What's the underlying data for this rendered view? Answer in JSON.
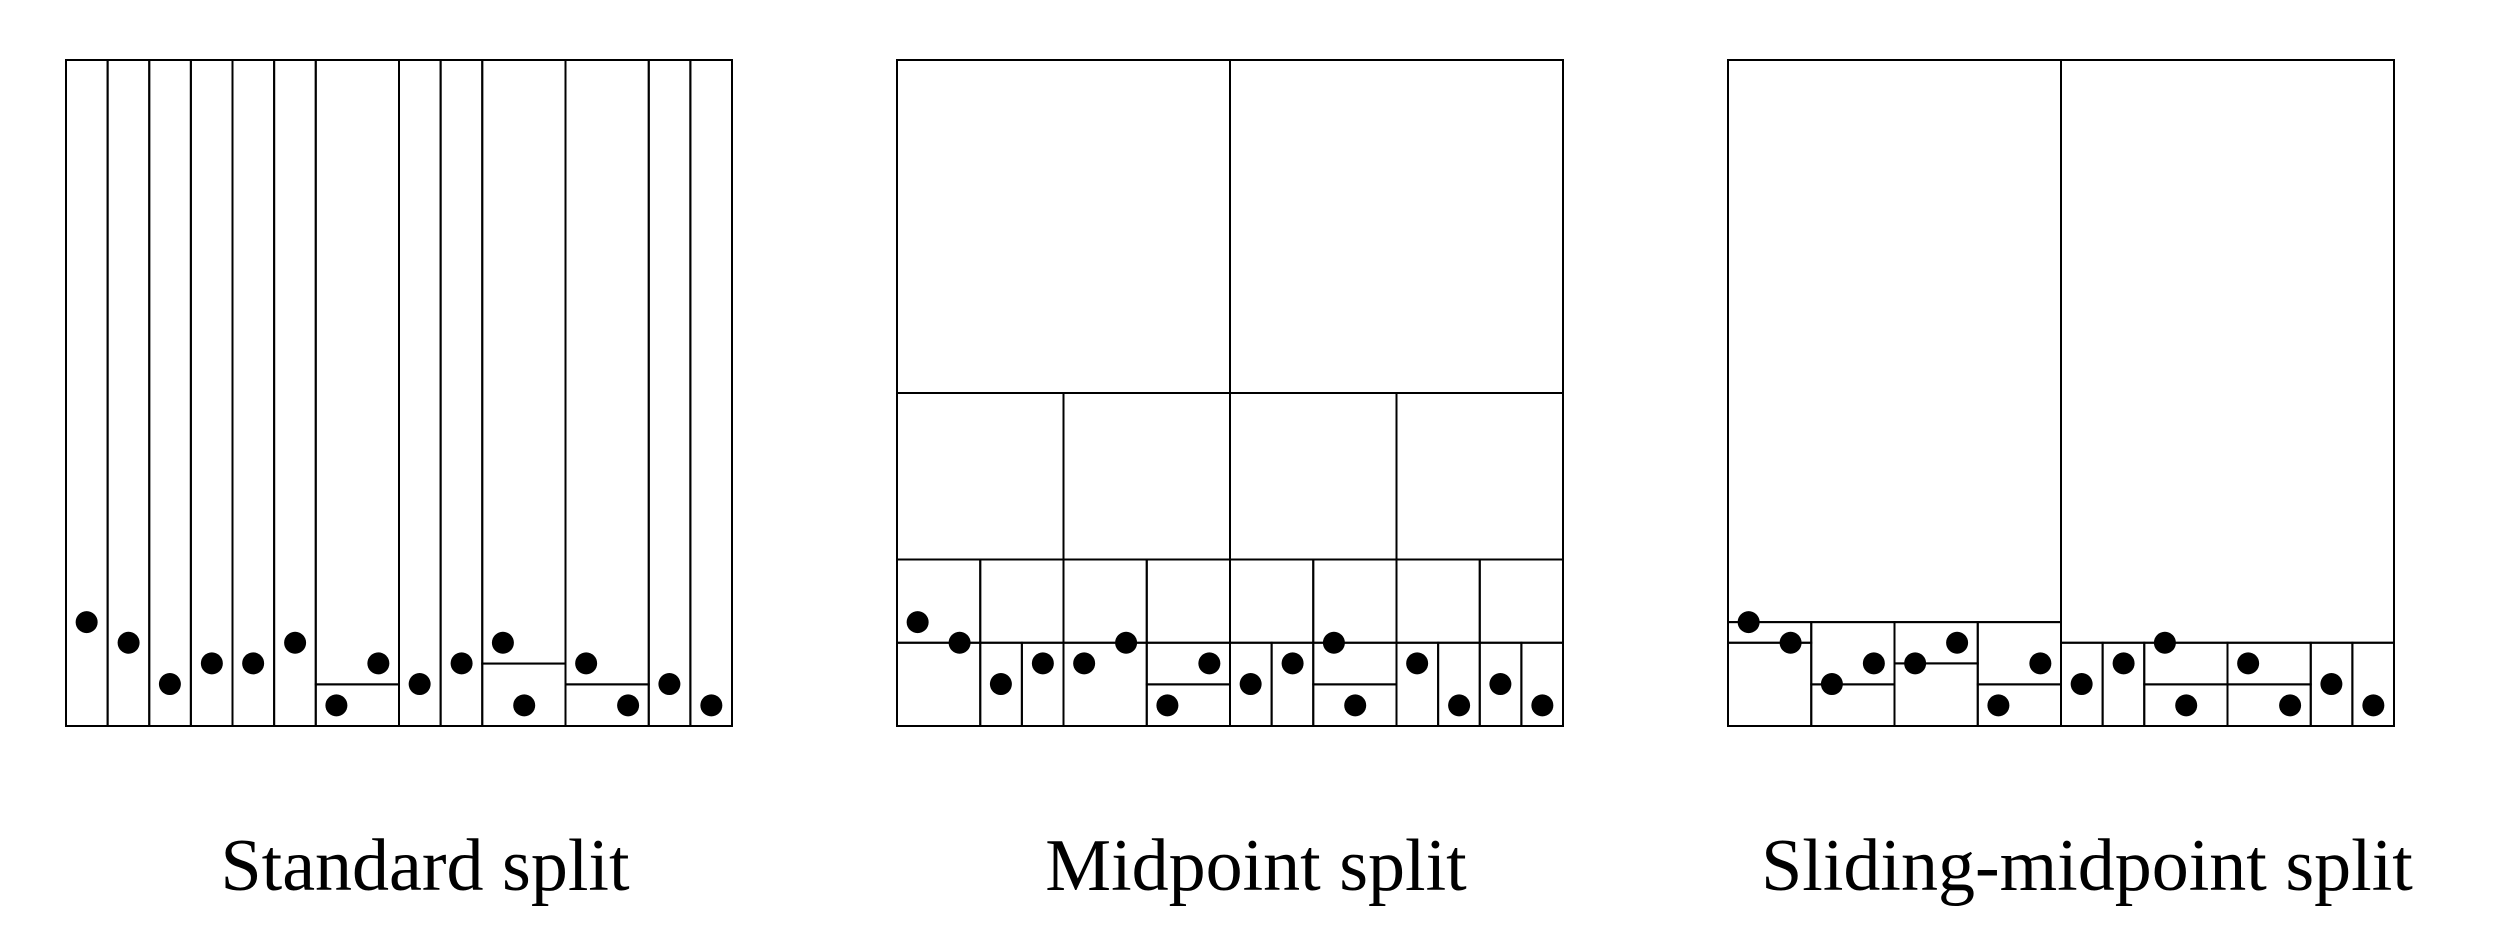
{
  "panels": [
    {
      "caption": "Standard split",
      "points": [
        [
          0.031,
          0.156
        ],
        [
          0.094,
          0.125
        ],
        [
          0.156,
          0.063
        ],
        [
          0.219,
          0.094
        ],
        [
          0.281,
          0.094
        ],
        [
          0.344,
          0.125
        ],
        [
          0.406,
          0.031
        ],
        [
          0.469,
          0.094
        ],
        [
          0.531,
          0.063
        ],
        [
          0.594,
          0.094
        ],
        [
          0.656,
          0.125
        ],
        [
          0.688,
          0.031
        ],
        [
          0.781,
          0.094
        ],
        [
          0.844,
          0.031
        ],
        [
          0.906,
          0.063
        ],
        [
          0.969,
          0.031
        ]
      ],
      "cells": [
        [
          0,
          0,
          0.0625,
          1
        ],
        [
          0.0625,
          0,
          0.125,
          1
        ],
        [
          0.125,
          0,
          0.1875,
          1
        ],
        [
          0.1875,
          0,
          0.25,
          1
        ],
        [
          0.25,
          0,
          0.3125,
          1
        ],
        [
          0.3125,
          0,
          0.375,
          1
        ],
        [
          0.375,
          0,
          0.5,
          0.0625
        ],
        [
          0.375,
          0.0625,
          0.5,
          1
        ],
        [
          0.5,
          0,
          0.5625,
          1
        ],
        [
          0.5625,
          0,
          0.625,
          1
        ],
        [
          0.625,
          0,
          0.75,
          0.09375
        ],
        [
          0.625,
          0.09375,
          0.75,
          1
        ],
        [
          0.75,
          0,
          0.875,
          0.0625
        ],
        [
          0.75,
          0.0625,
          0.875,
          1
        ],
        [
          0.875,
          0,
          0.9375,
          1
        ],
        [
          0.9375,
          0,
          1,
          1
        ]
      ]
    },
    {
      "caption": "Midpoint split",
      "points": [
        [
          0.031,
          0.156
        ],
        [
          0.094,
          0.125
        ],
        [
          0.156,
          0.063
        ],
        [
          0.219,
          0.094
        ],
        [
          0.281,
          0.094
        ],
        [
          0.344,
          0.125
        ],
        [
          0.406,
          0.031
        ],
        [
          0.469,
          0.094
        ],
        [
          0.531,
          0.063
        ],
        [
          0.594,
          0.094
        ],
        [
          0.656,
          0.125
        ],
        [
          0.688,
          0.031
        ],
        [
          0.781,
          0.094
        ],
        [
          0.844,
          0.031
        ],
        [
          0.906,
          0.063
        ],
        [
          0.969,
          0.031
        ]
      ],
      "cells": [
        [
          0,
          0.5,
          0.5,
          1
        ],
        [
          0.5,
          0.5,
          1,
          1
        ],
        [
          0,
          0.25,
          0.25,
          0.5
        ],
        [
          0.25,
          0.25,
          0.5,
          0.5
        ],
        [
          0.5,
          0.25,
          0.75,
          0.5
        ],
        [
          0.75,
          0.25,
          1,
          0.5
        ],
        [
          0,
          0.125,
          0.125,
          0.25
        ],
        [
          0.125,
          0.125,
          0.25,
          0.25
        ],
        [
          0.25,
          0.125,
          0.375,
          0.25
        ],
        [
          0.375,
          0.125,
          0.5,
          0.25
        ],
        [
          0.5,
          0.125,
          0.625,
          0.25
        ],
        [
          0.625,
          0.125,
          0.75,
          0.25
        ],
        [
          0.75,
          0.125,
          0.875,
          0.25
        ],
        [
          0.875,
          0.125,
          1,
          0.25
        ],
        [
          0,
          0,
          0.125,
          0.125
        ],
        [
          0.125,
          0,
          0.1875,
          0.125
        ],
        [
          0.1875,
          0,
          0.25,
          0.125
        ],
        [
          0.25,
          0,
          0.375,
          0.125
        ],
        [
          0.375,
          0,
          0.5,
          0.0625
        ],
        [
          0.375,
          0.0625,
          0.5,
          0.125
        ],
        [
          0.5,
          0,
          0.5625,
          0.125
        ],
        [
          0.5625,
          0,
          0.625,
          0.125
        ],
        [
          0.625,
          0,
          0.75,
          0.0625
        ],
        [
          0.625,
          0.0625,
          0.75,
          0.125
        ],
        [
          0.75,
          0,
          0.8125,
          0.125
        ],
        [
          0.8125,
          0,
          0.875,
          0.125
        ],
        [
          0.875,
          0,
          0.9375,
          0.125
        ],
        [
          0.9375,
          0,
          1,
          0.125
        ]
      ]
    },
    {
      "caption": "Sliding-midpoint split",
      "points": [
        [
          0.031,
          0.156
        ],
        [
          0.094,
          0.125
        ],
        [
          0.156,
          0.063
        ],
        [
          0.219,
          0.094
        ],
        [
          0.281,
          0.094
        ],
        [
          0.344,
          0.125
        ],
        [
          0.406,
          0.031
        ],
        [
          0.469,
          0.094
        ],
        [
          0.531,
          0.063
        ],
        [
          0.594,
          0.094
        ],
        [
          0.656,
          0.125
        ],
        [
          0.688,
          0.031
        ],
        [
          0.781,
          0.094
        ],
        [
          0.844,
          0.031
        ],
        [
          0.906,
          0.063
        ],
        [
          0.969,
          0.031
        ]
      ],
      "cells": [
        [
          0,
          0.156,
          0.5,
          1
        ],
        [
          0.5,
          0.125,
          1,
          1
        ],
        [
          0,
          0.125,
          0.125,
          0.156
        ],
        [
          0,
          0,
          0.125,
          0.125
        ],
        [
          0.125,
          0.0625,
          0.25,
          0.156
        ],
        [
          0.125,
          0,
          0.25,
          0.0625
        ],
        [
          0.25,
          0.094,
          0.375,
          0.156
        ],
        [
          0.25,
          0,
          0.375,
          0.094
        ],
        [
          0.375,
          0.0625,
          0.5,
          0.156
        ],
        [
          0.375,
          0,
          0.5,
          0.0625
        ],
        [
          0.5,
          0,
          0.5625,
          0.125
        ],
        [
          0.5625,
          0,
          0.625,
          0.125
        ],
        [
          0.625,
          0.0625,
          0.75,
          0.125
        ],
        [
          0.625,
          0,
          0.75,
          0.0625
        ],
        [
          0.75,
          0.0625,
          0.875,
          0.125
        ],
        [
          0.75,
          0,
          0.875,
          0.0625
        ],
        [
          0.875,
          0,
          0.9375,
          0.125
        ],
        [
          0.9375,
          0,
          1,
          0.125
        ]
      ]
    }
  ]
}
